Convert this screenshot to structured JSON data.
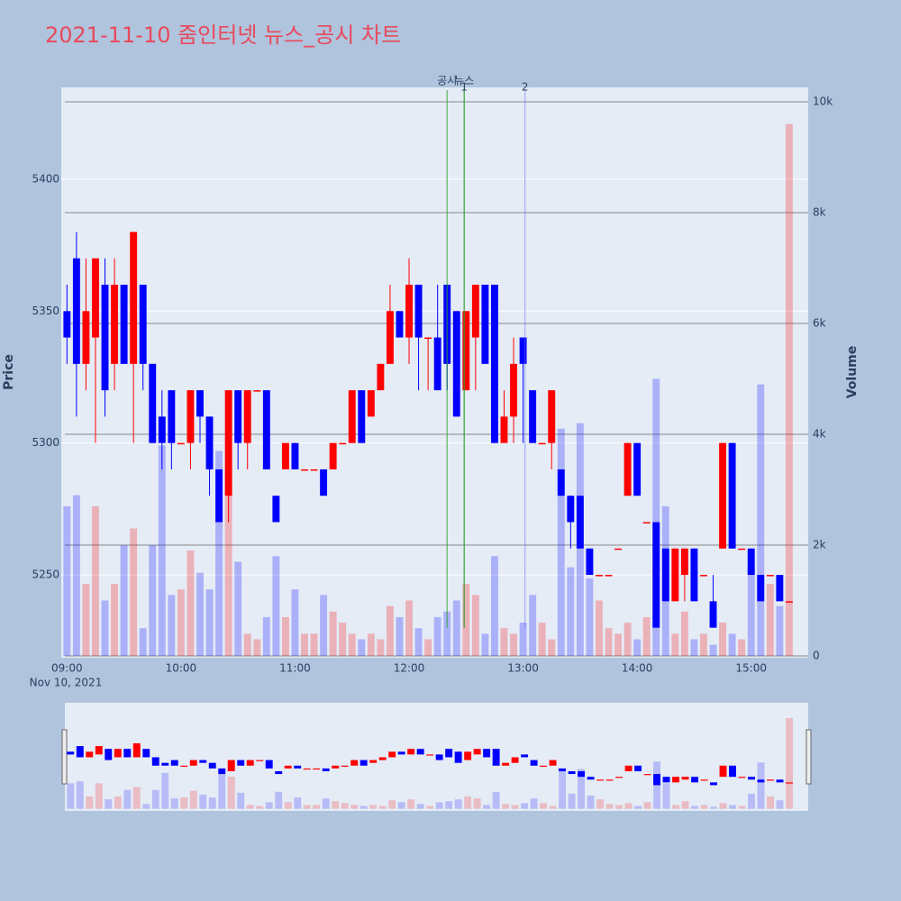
{
  "chart_data": {
    "type": "candlestick",
    "title": "2021-11-10 줌인터넷 뉴스_공시 차트",
    "x": [
      "2021-11-10 09:00",
      "2021-11-10 09:05",
      "2021-11-10 09:10",
      "2021-11-10 09:15",
      "2021-11-10 09:20",
      "2021-11-10 09:25",
      "2021-11-10 09:30",
      "2021-11-10 09:35",
      "2021-11-10 09:40",
      "2021-11-10 09:45",
      "2021-11-10 09:50",
      "2021-11-10 09:55",
      "2021-11-10 10:00",
      "2021-11-10 10:05",
      "2021-11-10 10:10",
      "2021-11-10 10:15",
      "2021-11-10 10:20",
      "2021-11-10 10:25",
      "2021-11-10 10:30",
      "2021-11-10 10:35",
      "2021-11-10 10:40",
      "2021-11-10 10:45",
      "2021-11-10 10:50",
      "2021-11-10 10:55",
      "2021-11-10 11:00",
      "2021-11-10 11:05",
      "2021-11-10 11:10",
      "2021-11-10 11:15",
      "2021-11-10 11:20",
      "2021-11-10 11:25",
      "2021-11-10 11:30",
      "2021-11-10 11:35",
      "2021-11-10 11:40",
      "2021-11-10 11:45",
      "2021-11-10 11:50",
      "2021-11-10 11:55",
      "2021-11-10 12:00",
      "2021-11-10 12:05",
      "2021-11-10 12:10",
      "2021-11-10 12:15",
      "2021-11-10 12:20",
      "2021-11-10 12:25",
      "2021-11-10 12:30",
      "2021-11-10 12:35",
      "2021-11-10 12:40",
      "2021-11-10 12:45",
      "2021-11-10 12:50",
      "2021-11-10 12:55",
      "2021-11-10 13:00",
      "2021-11-10 13:05",
      "2021-11-10 13:10",
      "2021-11-10 13:15",
      "2021-11-10 13:20",
      "2021-11-10 13:25",
      "2021-11-10 13:30",
      "2021-11-10 13:35",
      "2021-11-10 13:40",
      "2021-11-10 13:45",
      "2021-11-10 13:50",
      "2021-11-10 13:55",
      "2021-11-10 14:00",
      "2021-11-10 14:05",
      "2021-11-10 14:10",
      "2021-11-10 14:15",
      "2021-11-10 14:20",
      "2021-11-10 14:25",
      "2021-11-10 14:30",
      "2021-11-10 14:35",
      "2021-11-10 14:40",
      "2021-11-10 14:45",
      "2021-11-10 14:50",
      "2021-11-10 14:55",
      "2021-11-10 15:00",
      "2021-11-10 15:05",
      "2021-11-10 15:10",
      "2021-11-10 15:15",
      "2021-11-10 15:20"
    ],
    "open": [
      5350,
      5370,
      5330,
      5340,
      5360,
      5330,
      5360,
      5330,
      5360,
      5330,
      5310,
      5320,
      5300,
      5300,
      5320,
      5310,
      5290,
      5280,
      5320,
      5300,
      5320,
      5320,
      5280,
      5290,
      5300,
      5290,
      5290,
      5290,
      5290,
      5300,
      5300,
      5320,
      5310,
      5320,
      5330,
      5350,
      5340,
      5360,
      5340,
      5340,
      5360,
      5350,
      5320,
      5340,
      5360,
      5360,
      5300,
      5310,
      5340,
      5320,
      5300,
      5300,
      5290,
      5280,
      5280,
      5260,
      5250,
      5250,
      5260,
      5280,
      5300,
      5270,
      5270,
      5260,
      5240,
      5250,
      5260,
      5250,
      5240,
      5260,
      5300,
      5260,
      5260,
      5250,
      5250,
      5250,
      5240
    ],
    "high": [
      5360,
      5380,
      5370,
      5370,
      5370,
      5370,
      5360,
      5380,
      5360,
      5330,
      5320,
      5320,
      5300,
      5320,
      5320,
      5310,
      5290,
      5320,
      5320,
      5320,
      5320,
      5320,
      5280,
      5300,
      5300,
      5290,
      5290,
      5290,
      5300,
      5300,
      5320,
      5320,
      5320,
      5330,
      5360,
      5350,
      5370,
      5360,
      5340,
      5360,
      5360,
      5350,
      5350,
      5360,
      5360,
      5360,
      5320,
      5340,
      5340,
      5320,
      5300,
      5320,
      5290,
      5280,
      5280,
      5260,
      5250,
      5250,
      5260,
      5300,
      5300,
      5270,
      5270,
      5260,
      5260,
      5260,
      5260,
      5250,
      5250,
      5300,
      5300,
      5260,
      5260,
      5250,
      5250,
      5250,
      5240
    ],
    "low": [
      5330,
      5310,
      5320,
      5300,
      5310,
      5320,
      5330,
      5300,
      5320,
      5300,
      5290,
      5290,
      5300,
      5290,
      5300,
      5280,
      5270,
      5270,
      5290,
      5290,
      5320,
      5290,
      5270,
      5290,
      5290,
      5290,
      5290,
      5280,
      5290,
      5300,
      5300,
      5300,
      5310,
      5320,
      5330,
      5340,
      5330,
      5320,
      5320,
      5320,
      5320,
      5310,
      5320,
      5320,
      5330,
      5300,
      5300,
      5300,
      5300,
      5300,
      5300,
      5290,
      5280,
      5260,
      5260,
      5250,
      5250,
      5250,
      5260,
      5280,
      5280,
      5270,
      5230,
      5240,
      5240,
      5240,
      5240,
      5250,
      5230,
      5260,
      5260,
      5260,
      5250,
      5240,
      5250,
      5240,
      5240
    ],
    "close": [
      5340,
      5330,
      5350,
      5370,
      5320,
      5360,
      5330,
      5380,
      5330,
      5300,
      5300,
      5300,
      5300,
      5320,
      5310,
      5290,
      5270,
      5320,
      5300,
      5320,
      5320,
      5290,
      5270,
      5300,
      5290,
      5290,
      5290,
      5280,
      5300,
      5300,
      5320,
      5300,
      5320,
      5330,
      5350,
      5340,
      5360,
      5340,
      5340,
      5320,
      5330,
      5310,
      5350,
      5360,
      5330,
      5300,
      5310,
      5330,
      5330,
      5300,
      5300,
      5320,
      5280,
      5270,
      5260,
      5250,
      5250,
      5250,
      5260,
      5300,
      5280,
      5270,
      5230,
      5240,
      5260,
      5260,
      5240,
      5250,
      5230,
      5300,
      5260,
      5260,
      5250,
      5240,
      5250,
      5240,
      5240
    ],
    "volume": [
      2700,
      2900,
      1300,
      2700,
      1000,
      1300,
      2000,
      2300,
      500,
      2000,
      3800,
      1100,
      1200,
      1900,
      1500,
      1200,
      3700,
      3400,
      1700,
      400,
      300,
      700,
      1800,
      700,
      1200,
      400,
      400,
      1100,
      800,
      600,
      400,
      300,
      400,
      300,
      900,
      700,
      1000,
      500,
      300,
      700,
      800,
      1000,
      1300,
      1100,
      400,
      1800,
      500,
      400,
      600,
      1100,
      600,
      300,
      4100,
      1600,
      4200,
      1400,
      1000,
      500,
      400,
      600,
      300,
      700,
      5000,
      2700,
      400,
      800,
      300,
      400,
      200,
      600,
      400,
      300,
      1600,
      4900,
      1300,
      900,
      9600
    ],
    "up_color": "#ff0000",
    "down_color": "#0000ff",
    "xlim": [
      "2021-11-10 08:57",
      "2021-11-10 15:30"
    ],
    "xticks": [
      {
        "value": "2021-11-10 09:00",
        "label": "09:00"
      },
      {
        "value": "2021-11-10 10:00",
        "label": "10:00"
      },
      {
        "value": "2021-11-10 11:00",
        "label": "11:00"
      },
      {
        "value": "2021-11-10 12:00",
        "label": "12:00"
      },
      {
        "value": "2021-11-10 13:00",
        "label": "13:00"
      },
      {
        "value": "2021-11-10 14:00",
        "label": "14:00"
      },
      {
        "value": "2021-11-10 15:00",
        "label": "15:00"
      }
    ],
    "x_date_label": "Nov 10, 2021",
    "ylim": [
      5218.6,
      5434.8
    ],
    "yticks": [
      5250,
      5300,
      5350,
      5400
    ],
    "y_label": "Price",
    "y2lim": [
      -33,
      10260
    ],
    "y2ticks": [
      0,
      {
        "value": 2000,
        "label": "2k"
      },
      {
        "value": 4000,
        "label": "4k"
      },
      {
        "value": 6000,
        "label": "6k"
      },
      {
        "value": 8000,
        "label": "8k"
      },
      {
        "value": 10000,
        "label": "10k"
      }
    ],
    "y2_label": "Volume",
    "events": [
      {
        "label": "공시",
        "x": "2021-11-10 12:20",
        "color": "#2ca02c"
      },
      {
        "label": "뉴스",
        "x": "2021-11-10 12:29",
        "color": "#2ca02c"
      },
      {
        "label": "1",
        "x": "2021-11-10 12:29",
        "color": "#2ca02c"
      },
      {
        "label": "2",
        "x": "2021-11-10 13:01",
        "color": "#636efa"
      }
    ],
    "range_slider": true
  }
}
